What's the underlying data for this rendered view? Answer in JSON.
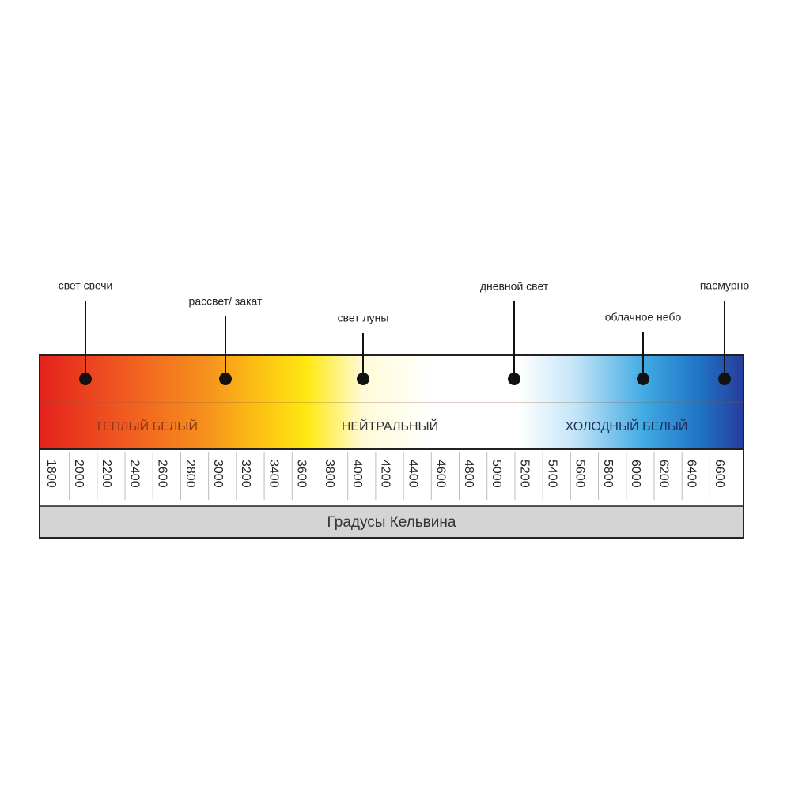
{
  "markers": [
    {
      "label": "свет свечи"
    },
    {
      "label": "рассвет/ закат"
    },
    {
      "label": "свет луны"
    },
    {
      "label": "дневной свет"
    },
    {
      "label": "облачное небо"
    },
    {
      "label": "пасмурно"
    }
  ],
  "zones": [
    "ТЕПЛЫЙ БЕЛЫЙ",
    "НЕЙТРАЛЬНЫЙ",
    "ХОЛОДНЫЙ БЕЛЫЙ"
  ],
  "scale": {
    "ticks": [
      1800,
      2000,
      2200,
      2400,
      2600,
      2800,
      3000,
      3200,
      3400,
      3600,
      3800,
      4000,
      4200,
      4400,
      4600,
      4800,
      5000,
      5200,
      5400,
      5600,
      5800,
      6000,
      6200,
      6400,
      6600
    ],
    "title": "Градусы Кельвина"
  }
}
